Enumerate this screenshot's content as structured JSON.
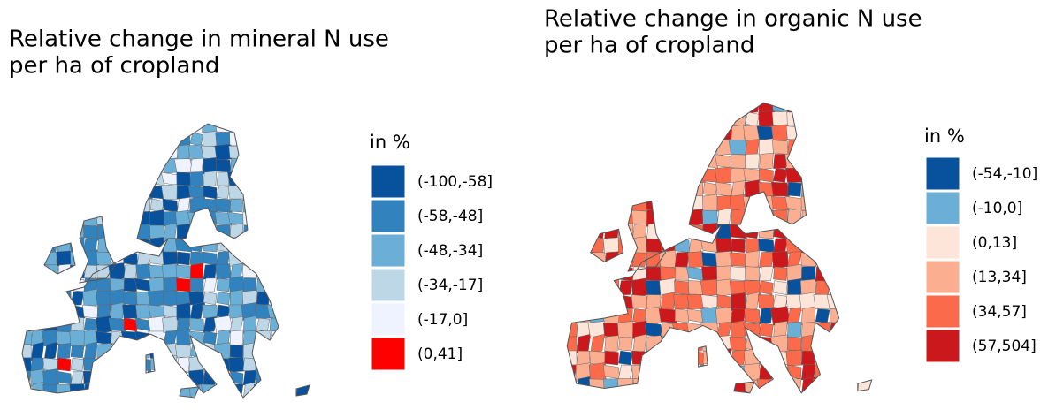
{
  "panels": [
    {
      "title_lines": [
        "Relative change in mineral N use",
        "per ha of cropland"
      ],
      "legend": {
        "title": "in %",
        "items": [
          {
            "label": "(-100,-58]",
            "color": "#08519c"
          },
          {
            "label": "(-58,-48]",
            "color": "#3182bd"
          },
          {
            "label": "(-48,-34]",
            "color": "#6baed6"
          },
          {
            "label": "(-34,-17]",
            "color": "#bdd7e7"
          },
          {
            "label": "(-17,0]",
            "color": "#eff3ff"
          },
          {
            "label": "(0,41]",
            "color": "#ff0000"
          }
        ]
      }
    },
    {
      "title_lines": [
        "Relative change in organic N use",
        "per ha of cropland"
      ],
      "legend": {
        "title": "in %",
        "items": [
          {
            "label": "(-54,-10]",
            "color": "#08519c"
          },
          {
            "label": "(-10,0]",
            "color": "#6baed6"
          },
          {
            "label": "(0,13]",
            "color": "#fee5d9"
          },
          {
            "label": "(13,34]",
            "color": "#fcae91"
          },
          {
            "label": "(34,57]",
            "color": "#fb6a4a"
          },
          {
            "label": "(57,504]",
            "color": "#cb181d"
          }
        ]
      }
    }
  ]
}
